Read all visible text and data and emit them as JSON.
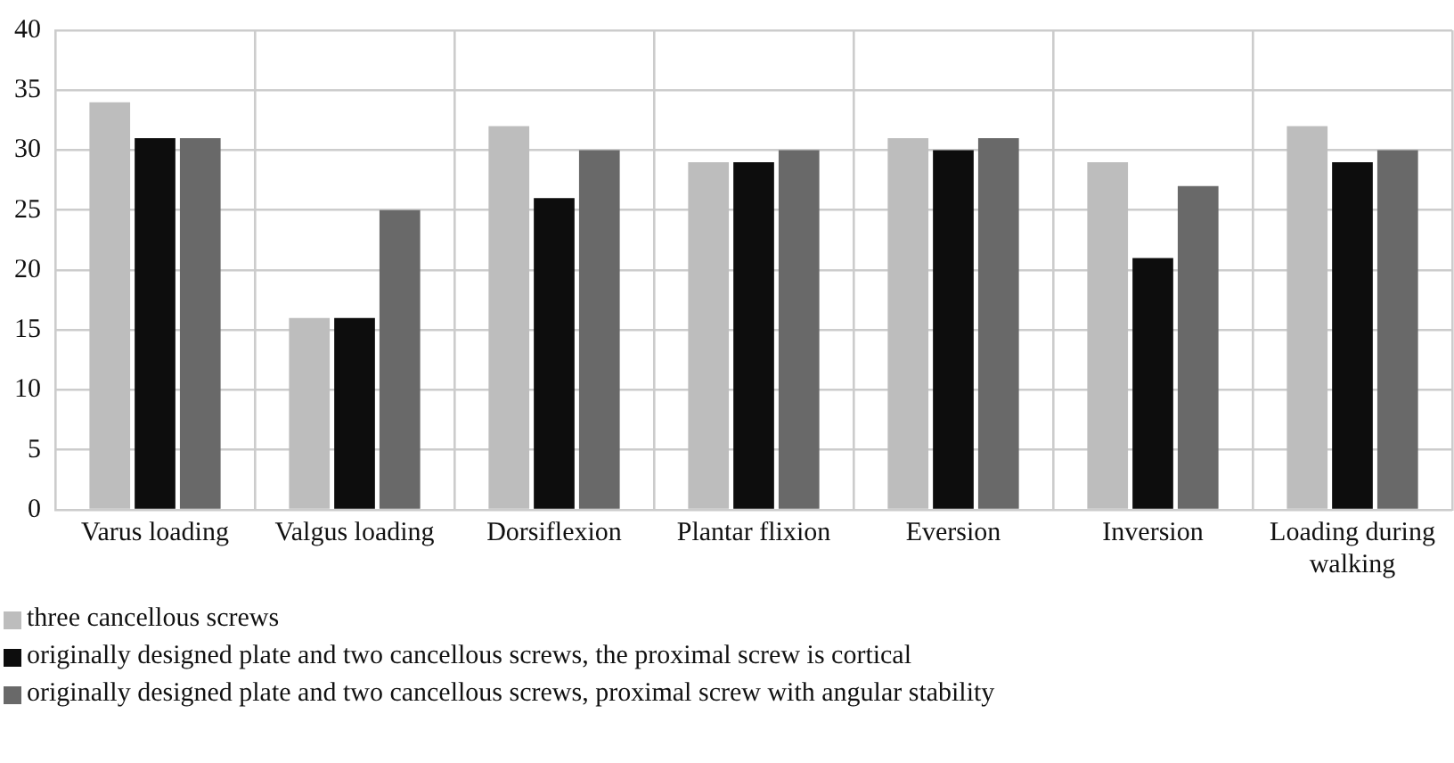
{
  "chart_data": {
    "type": "bar",
    "categories": [
      "Varus loading",
      "Valgus loading",
      "Dorsiflexion",
      "Plantar flixion",
      "Eversion",
      "Inversion",
      "Loading during walking"
    ],
    "series": [
      {
        "name": "three cancellous screws",
        "color": "#bdbdbd",
        "values": [
          34,
          16,
          32,
          29,
          31,
          29,
          32
        ]
      },
      {
        "name": "originally designed plate and two cancellous screws, the proximal screw is cortical",
        "color": "#0d0d0d",
        "values": [
          31,
          16,
          26,
          29,
          30,
          21,
          29
        ]
      },
      {
        "name": "originally designed plate and two cancellous screws, proximal screw with angular stability",
        "color": "#696969",
        "values": [
          31,
          25,
          30,
          30,
          31,
          27,
          30
        ]
      }
    ],
    "ylim": [
      0,
      40
    ],
    "yticks": [
      0,
      5,
      10,
      15,
      20,
      25,
      30,
      35,
      40
    ],
    "grid": true,
    "legend": "bottom"
  }
}
